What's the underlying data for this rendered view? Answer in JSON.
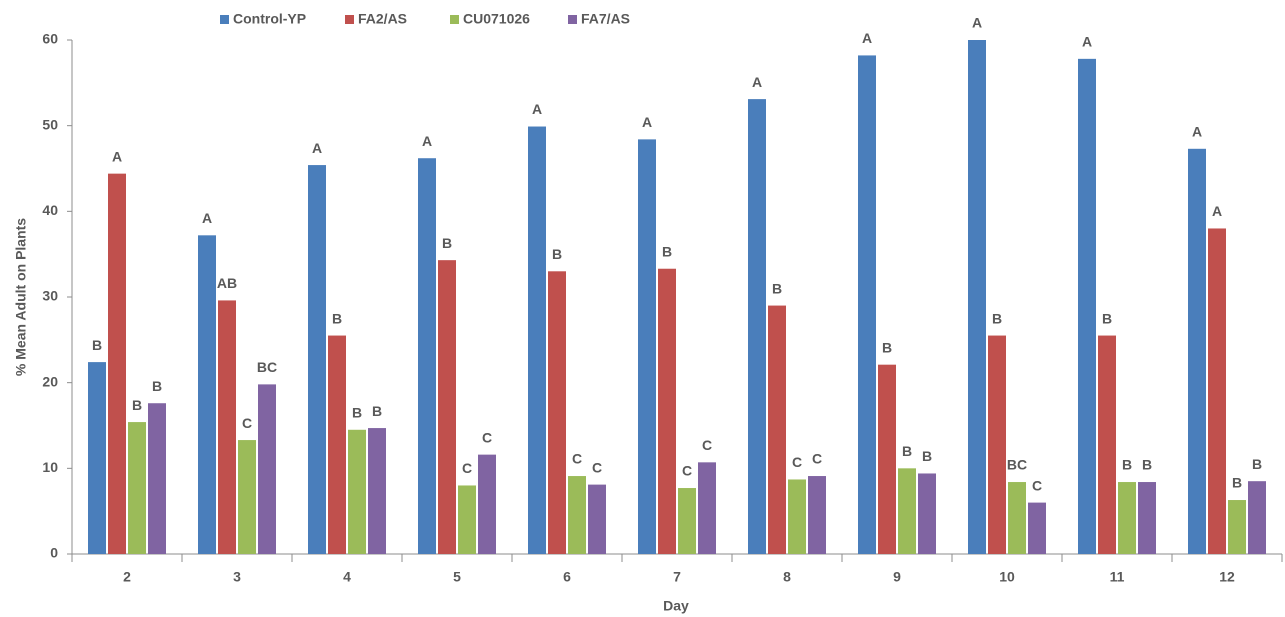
{
  "chart_data": {
    "type": "bar",
    "y_label": "% Mean Adult on Plants",
    "x_label": "Day",
    "categories": [
      "2",
      "3",
      "4",
      "5",
      "6",
      "7",
      "8",
      "9",
      "10",
      "11",
      "12"
    ],
    "series": [
      {
        "name": "Control-YP",
        "color": "#4a7ebb",
        "values": [
          22.4,
          37.2,
          45.4,
          46.2,
          49.9,
          48.4,
          53.1,
          58.2,
          60.0,
          57.8,
          47.3
        ],
        "letters": [
          "B",
          "A",
          "A",
          "A",
          "A",
          "A",
          "A",
          "A",
          "A",
          "A",
          "A"
        ]
      },
      {
        "name": "FA2/AS",
        "color": "#c0504d",
        "values": [
          44.4,
          29.6,
          25.5,
          34.3,
          33.0,
          33.3,
          29.0,
          22.1,
          25.5,
          25.5,
          38.0
        ],
        "letters": [
          "A",
          "AB",
          "B",
          "B",
          "B",
          "B",
          "B",
          "B",
          "B",
          "B",
          "A"
        ]
      },
      {
        "name": "CU071026",
        "color": "#9bbb59",
        "values": [
          15.4,
          13.3,
          14.5,
          8.0,
          9.1,
          7.7,
          8.7,
          10.0,
          8.4,
          8.4,
          6.3
        ],
        "letters": [
          "B",
          "C",
          "B",
          "C",
          "C",
          "C",
          "C",
          "B",
          "BC",
          "B",
          "B"
        ]
      },
      {
        "name": "FA7/AS",
        "color": "#8064a2",
        "values": [
          17.6,
          19.8,
          14.7,
          11.6,
          8.1,
          10.7,
          9.1,
          9.4,
          6.0,
          8.4,
          8.5
        ],
        "letters": [
          "B",
          "BC",
          "B",
          "C",
          "C",
          "C",
          "C",
          "B",
          "C",
          "B",
          "B"
        ]
      }
    ],
    "ylim": [
      0,
      60
    ],
    "yticks": [
      0,
      10,
      20,
      30,
      40,
      50,
      60
    ],
    "grid": false,
    "legend": "top"
  }
}
